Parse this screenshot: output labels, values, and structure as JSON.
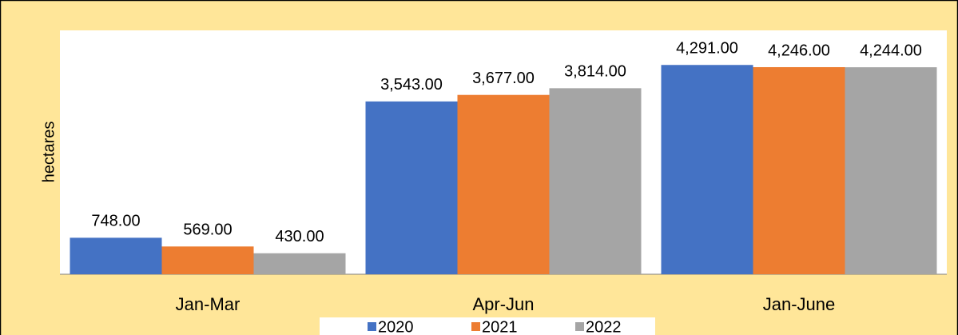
{
  "chart_data": {
    "type": "bar",
    "y_label": "hectares",
    "categories": [
      "Jan-Mar",
      "Apr-Jun",
      "Jan-June"
    ],
    "series": [
      {
        "name": "2020",
        "color": "#4472c4",
        "values": [
          748,
          3543,
          4291
        ],
        "value_labels": [
          "748.00",
          "3,543.00",
          "4,291.00"
        ]
      },
      {
        "name": "2021",
        "color": "#ed7d31",
        "values": [
          569,
          3677,
          4246
        ],
        "value_labels": [
          "569.00",
          "3,677.00",
          "4,246.00"
        ]
      },
      {
        "name": "2022",
        "color": "#a5a5a5",
        "values": [
          430,
          3814,
          4244
        ],
        "value_labels": [
          "430.00",
          "3,814.00",
          "4,244.00"
        ]
      }
    ],
    "ylim": [
      0,
      5000
    ],
    "legend": "bottom"
  }
}
